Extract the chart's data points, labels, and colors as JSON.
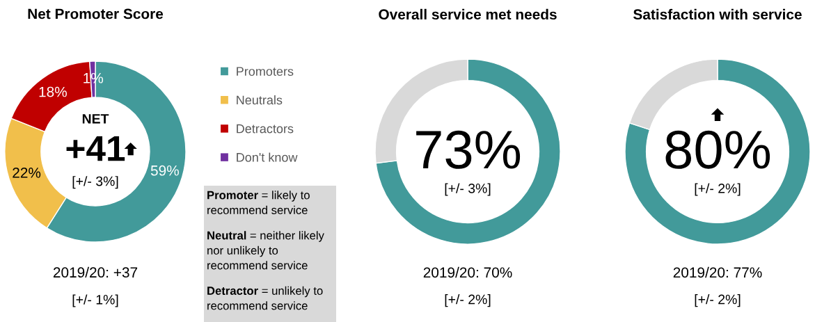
{
  "chart_data": [
    {
      "type": "donut",
      "title": "Net Promoter Score",
      "categories": [
        "Promoters",
        "Neutrals",
        "Detractors",
        "Don't know"
      ],
      "values": [
        59,
        22,
        18,
        1
      ],
      "colors": [
        "#429a9a",
        "#f1bf4b",
        "#c00000",
        "#7030a0"
      ],
      "value_labels": [
        "59%",
        "22%",
        "18%",
        "1%"
      ],
      "legend": "right",
      "annotations": [
        "NET",
        "+41",
        "[+/- 3%]",
        "2019/20: +37",
        "[+/- 1%]"
      ]
    },
    {
      "type": "other",
      "annotations": [
        "Promoter = likely to recommend service",
        "Neutral = neither likely nor unlikely to recommend service",
        "Detractor = unlikely to recommend service"
      ]
    },
    {
      "type": "donut",
      "title": "Overall service met needs",
      "categories": [
        null,
        null
      ],
      "values": [
        73,
        27
      ],
      "colors": [
        "#429a9a",
        "#d9d9d9"
      ],
      "annotations": [
        "73%",
        "[+/- 3%]",
        "2019/20: 70%",
        "[+/- 2%]"
      ]
    },
    {
      "type": "donut",
      "title": "Satisfaction with service",
      "categories": [
        null,
        null
      ],
      "values": [
        80,
        20
      ],
      "colors": [
        "#429a9a",
        "#d9d9d9"
      ],
      "annotations": [
        "80%",
        "[+/- 2%]",
        "2019/20: 77%",
        "[+/- 2%]"
      ]
    }
  ]
}
